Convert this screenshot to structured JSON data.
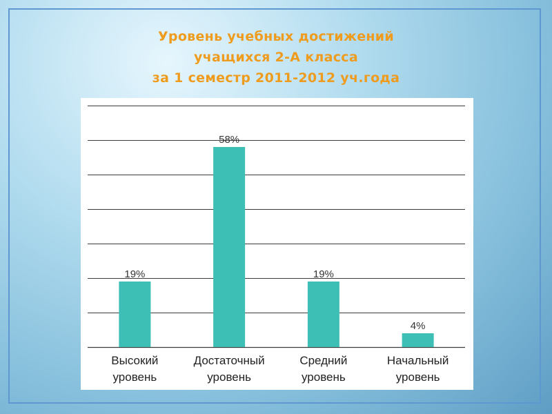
{
  "title_lines": [
    "Уровень учебных достижений",
    "учащихся 2-А класса",
    "за 1 семестр 2011-2012 уч.года"
  ],
  "colors": {
    "bar": "#3dbfb6",
    "title": "#ee9b1e",
    "grid": "#3a3a3a"
  },
  "chart_data": {
    "type": "bar",
    "title": "Уровень учебных достижений учащихся 2-А класса за 1 семестр 2011-2012 уч.года",
    "categories": [
      [
        "Высокий",
        "уровень"
      ],
      [
        "Достаточный",
        "уровень"
      ],
      [
        "Средний",
        "уровень"
      ],
      [
        "Начальный",
        "уровень"
      ]
    ],
    "values": [
      19,
      58,
      19,
      4
    ],
    "data_labels": [
      "19%",
      "58%",
      "19%",
      "4%"
    ],
    "ylim": [
      0,
      70
    ],
    "grid_step": 10,
    "grid": true,
    "legend": "none",
    "xlabel": "",
    "ylabel": ""
  }
}
